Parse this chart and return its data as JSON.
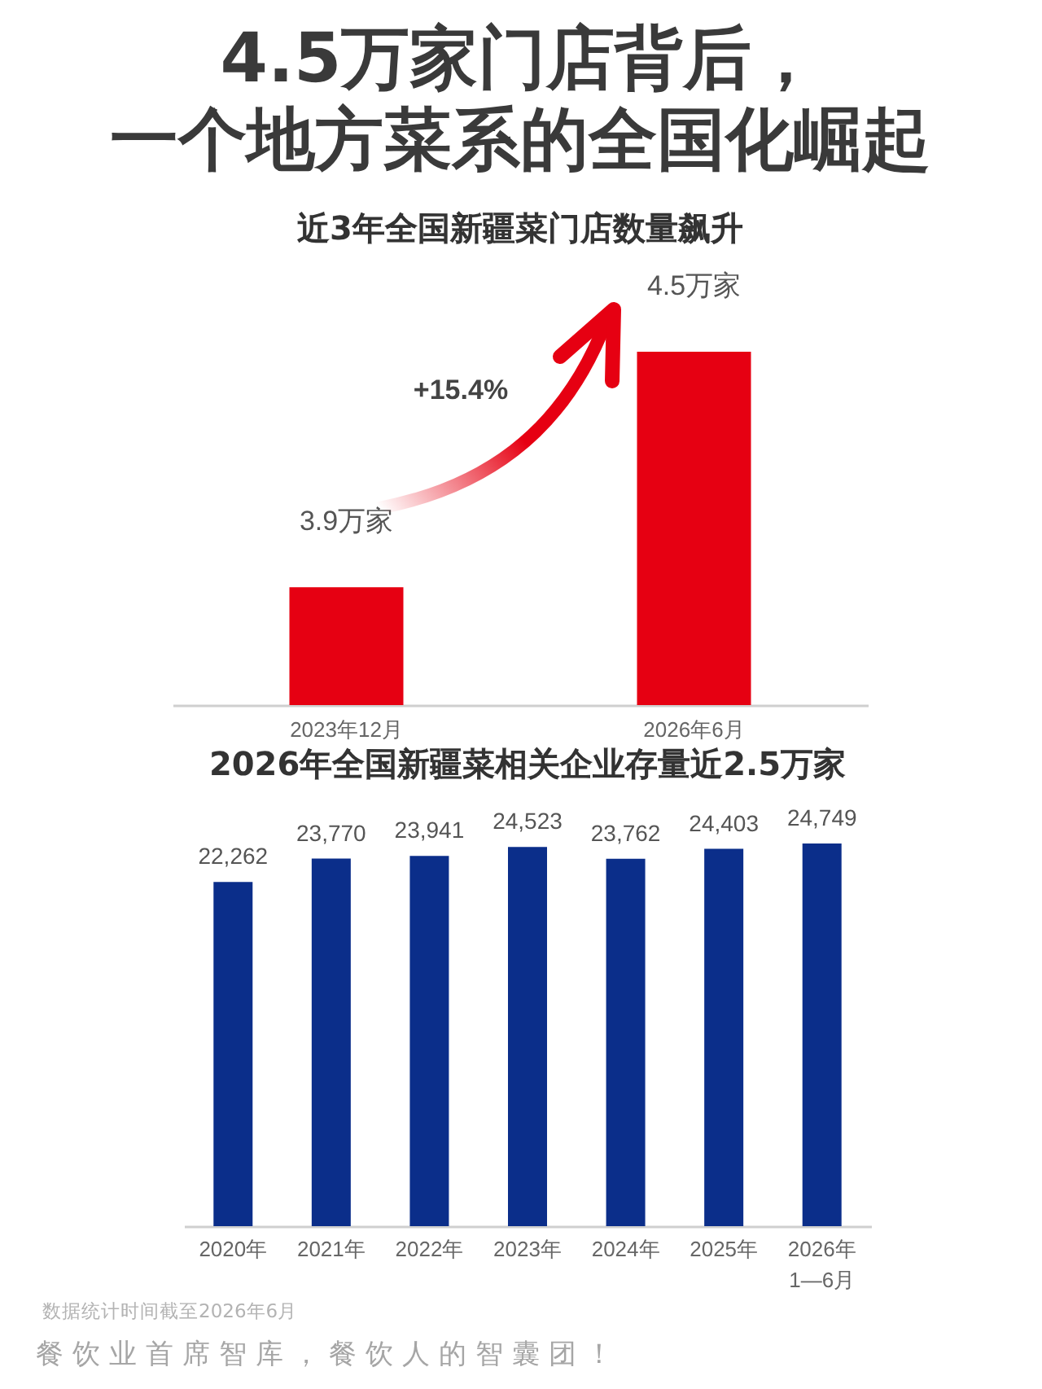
{
  "chart_data": [
    {
      "type": "bar",
      "title": "4.5万家门店背后，一个地方菜系的全国化崛起",
      "subtitle": "近3年全国新疆菜门店数量飙升",
      "categories": [
        "2023年12月",
        "2026年6月"
      ],
      "values": [
        3.9,
        4.5
      ],
      "value_labels": [
        "3.9万家",
        "4.5万家"
      ],
      "color": "#e60012",
      "ylim": [
        3.6,
        4.5
      ],
      "tick_labels": "x",
      "annotations": [
        "+15.4%"
      ]
    },
    {
      "type": "bar",
      "title": "2026年全国新疆菜相关企业存量近2.5万家",
      "categories": [
        "2020年",
        "2021年",
        "2022年",
        "2023年",
        "2024年",
        "2025年",
        "2026年\n1—6月"
      ],
      "values": [
        22262,
        23770,
        23941,
        24523,
        23762,
        24403,
        24749
      ],
      "value_labels": [
        "22,262",
        "23,770",
        "23,941",
        "24,523",
        "23,762",
        "24,403",
        "24,749"
      ],
      "color": "#0b2e8a",
      "tick_labels": "x",
      "annotations": [
        "数据统计时间截至2026年6月",
        "餐饮业首席智库，餐饮人的智囊团！"
      ]
    }
  ]
}
